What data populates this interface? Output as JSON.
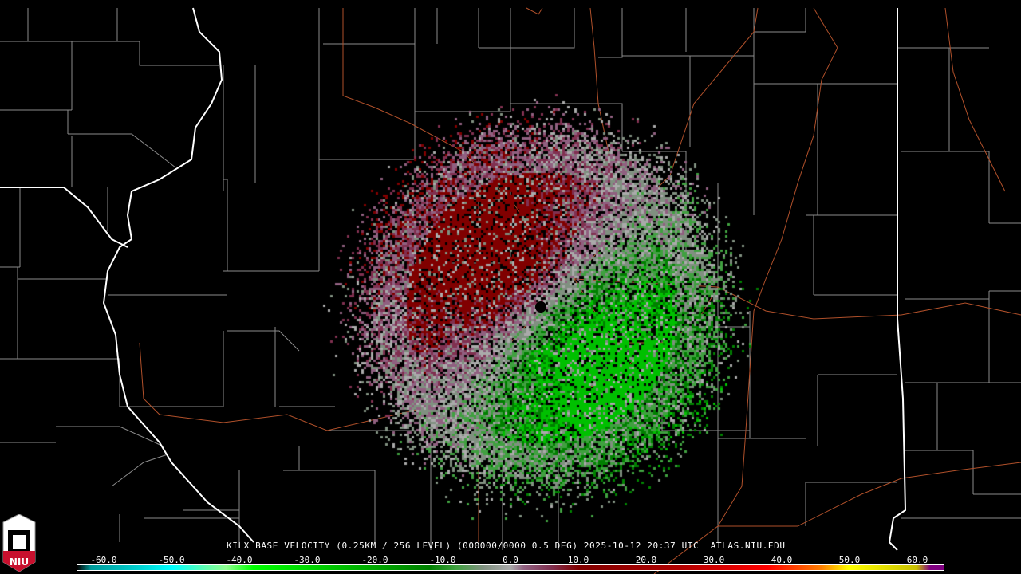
{
  "product": {
    "caption": "KILX BASE VELOCITY (0.25KM / 256 LEVEL) (000000/0000 0.5 DEG) 2025-10-12 20:37 UTC  ATLAS.NIU.EDU",
    "radar_site": "KILX",
    "product_name": "BASE VELOCITY",
    "resolution": "0.25KM / 256 LEVEL",
    "elevation": "0.5 DEG",
    "datetime": "2025-10-12 20:37 UTC",
    "source": "ATLAS.NIU.EDU"
  },
  "logo": {
    "text": "NIU",
    "colors": {
      "red": "#c8102e",
      "white": "#ffffff"
    }
  },
  "colorbar": {
    "range": [
      -64,
      64
    ],
    "ticks": [
      "-60.0",
      "-50.0",
      "-40.0",
      "-30.0",
      "-20.0",
      "-10.0",
      "0.0",
      "10.0",
      "20.0",
      "30.0",
      "40.0",
      "50.0",
      "60.0"
    ],
    "tick_values": [
      -60,
      -50,
      -40,
      -30,
      -20,
      -10,
      0,
      10,
      20,
      30,
      40,
      50,
      60
    ],
    "stops": [
      {
        "v": -64,
        "c": "#000000"
      },
      {
        "v": -62,
        "c": "#009999"
      },
      {
        "v": -55,
        "c": "#00d0d0"
      },
      {
        "v": -50,
        "c": "#00ffff"
      },
      {
        "v": -45,
        "c": "#60ffb0"
      },
      {
        "v": -42,
        "c": "#90ff90"
      },
      {
        "v": -38,
        "c": "#00ff00"
      },
      {
        "v": -25,
        "c": "#00c000"
      },
      {
        "v": -12,
        "c": "#008000"
      },
      {
        "v": -8,
        "c": "#40a040"
      },
      {
        "v": -4,
        "c": "#809080"
      },
      {
        "v": 0,
        "c": "#aaaaaa"
      },
      {
        "v": 2,
        "c": "#906080"
      },
      {
        "v": 6,
        "c": "#803050"
      },
      {
        "v": 10,
        "c": "#800000"
      },
      {
        "v": 25,
        "c": "#b00000"
      },
      {
        "v": 38,
        "c": "#ff0000"
      },
      {
        "v": 42,
        "c": "#ff4000"
      },
      {
        "v": 46,
        "c": "#ff8000"
      },
      {
        "v": 48,
        "c": "#ffc000"
      },
      {
        "v": 50,
        "c": "#ffff00"
      },
      {
        "v": 60,
        "c": "#c8c000"
      },
      {
        "v": 62,
        "c": "#800080"
      }
    ]
  },
  "colors": {
    "county_lines": "#8c8c8c",
    "state_lines": "#ffffff",
    "highways": "#b0502a",
    "background": "#000000"
  }
}
